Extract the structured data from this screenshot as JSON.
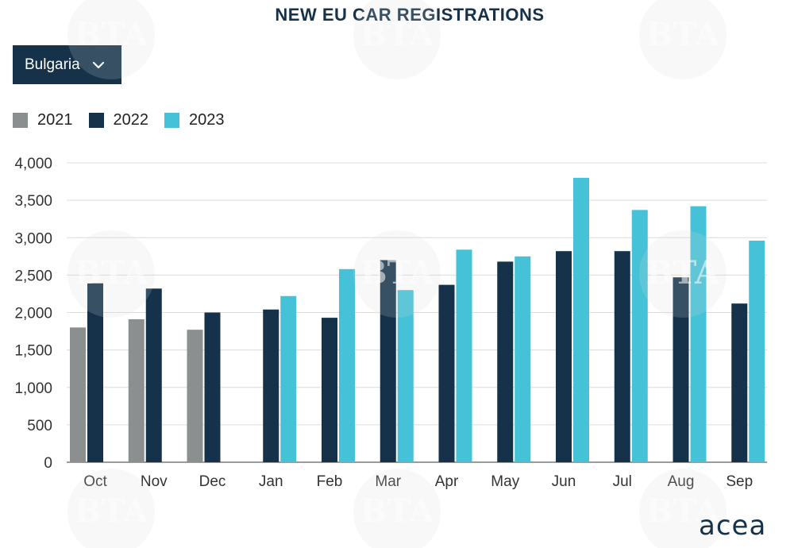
{
  "header": {
    "title": "NEW EU CAR REGISTRATIONS"
  },
  "filter": {
    "selected": "Bulgaria",
    "icon": "chevron-down-icon"
  },
  "branding": {
    "logo_text": "acea",
    "watermark_text": "BTA"
  },
  "colors": {
    "2021": "#8c8f90",
    "2022": "#15324a",
    "2023": "#45c2d8",
    "grid": "#dcdcdc"
  },
  "chart_data": {
    "type": "bar",
    "title": "NEW EU CAR REGISTRATIONS",
    "xlabel": "",
    "ylabel": "",
    "categories": [
      "Oct",
      "Nov",
      "Dec",
      "Jan",
      "Feb",
      "Mar",
      "Apr",
      "May",
      "Jun",
      "Jul",
      "Aug",
      "Sep"
    ],
    "series": [
      {
        "name": "2021",
        "color": "#8c8f90",
        "values": [
          1800,
          1910,
          1770,
          null,
          null,
          null,
          null,
          null,
          null,
          null,
          null,
          null
        ]
      },
      {
        "name": "2022",
        "color": "#15324a",
        "values": [
          2390,
          2320,
          2000,
          2040,
          1930,
          2700,
          2370,
          2680,
          2820,
          2820,
          2470,
          2120
        ]
      },
      {
        "name": "2023",
        "color": "#45c2d8",
        "values": [
          null,
          null,
          null,
          2220,
          2580,
          2300,
          2840,
          2750,
          3800,
          3370,
          3420,
          2960
        ]
      }
    ],
    "ylim": [
      0,
      4000
    ],
    "yticks": [
      0,
      500,
      1000,
      1500,
      2000,
      2500,
      3000,
      3500,
      4000
    ],
    "ytick_labels": [
      "0",
      "500",
      "1,000",
      "1,500",
      "2,000",
      "2,500",
      "3,000",
      "3,500",
      "4,000"
    ],
    "grid": true,
    "legend": "top-left"
  }
}
